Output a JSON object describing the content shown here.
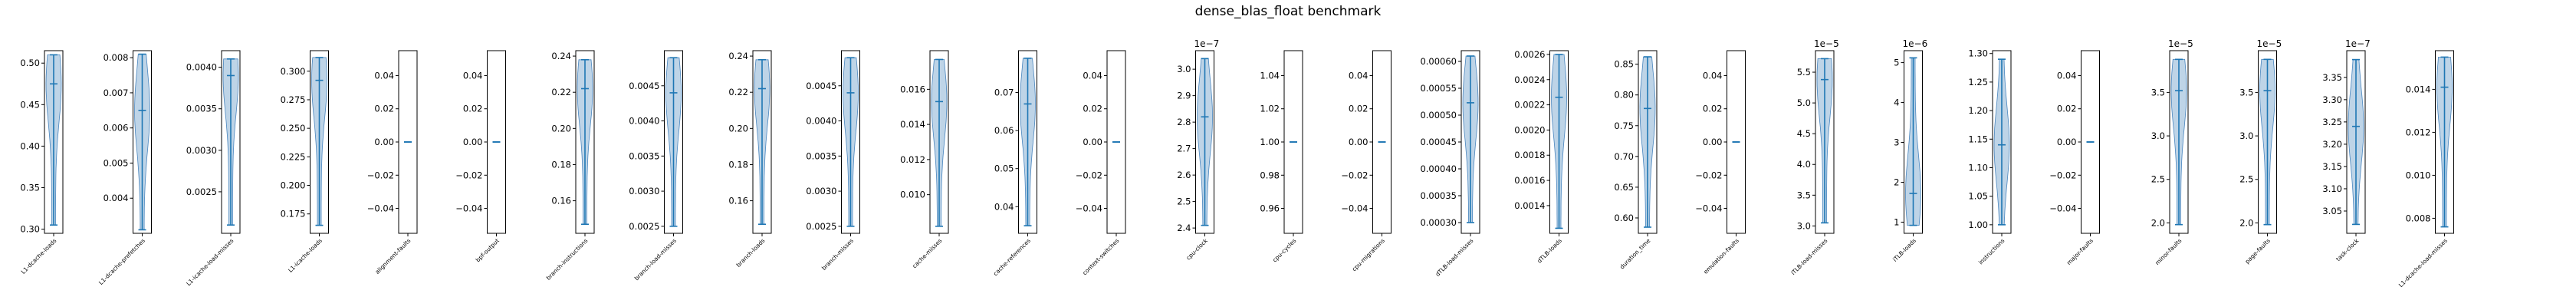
{
  "chart_data": {
    "type": "violin",
    "title": "dense_blas_float benchmark",
    "color": "#1f77b4",
    "fill": "#b3cde3",
    "panels": [
      {
        "label": "L1-dcache-loads",
        "ylim": [
          0.295,
          0.515
        ],
        "ticks": [
          "0.30",
          "0.35",
          "0.40",
          "0.45",
          "0.50"
        ],
        "tick_values": [
          0.3,
          0.35,
          0.4,
          0.45,
          0.5
        ],
        "multiplier": "",
        "min": 0.305,
        "max": 0.51,
        "median": 0.475
      },
      {
        "label": "L1-dcache-prefetches",
        "ylim": [
          0.003,
          0.0082
        ],
        "ticks": [
          "0.004",
          "0.005",
          "0.006",
          "0.007",
          "0.008"
        ],
        "tick_values": [
          0.004,
          0.005,
          0.006,
          0.007,
          0.008
        ],
        "multiplier": "",
        "min": 0.0031,
        "max": 0.0081,
        "median": 0.0065
      },
      {
        "label": "L1-icache-load-misses",
        "ylim": [
          0.002,
          0.0042
        ],
        "ticks": [
          "0.0025",
          "0.0030",
          "0.0035",
          "0.0040"
        ],
        "tick_values": [
          0.0025,
          0.003,
          0.0035,
          0.004
        ],
        "multiplier": "",
        "min": 0.0021,
        "max": 0.0041,
        "median": 0.0039
      },
      {
        "label": "L1-icache-loads",
        "ylim": [
          0.158,
          0.318
        ],
        "ticks": [
          "0.175",
          "0.200",
          "0.225",
          "0.250",
          "0.275",
          "0.300"
        ],
        "tick_values": [
          0.175,
          0.2,
          0.225,
          0.25,
          0.275,
          0.3
        ],
        "multiplier": "",
        "min": 0.165,
        "max": 0.312,
        "median": 0.292
      },
      {
        "label": "alignment-faults",
        "ylim": [
          -0.055,
          0.055
        ],
        "ticks": [
          "−0.04",
          "−0.02",
          "0.00",
          "0.02",
          "0.04"
        ],
        "tick_values": [
          -0.04,
          -0.02,
          0.0,
          0.02,
          0.04
        ],
        "multiplier": "",
        "min": 0.0,
        "max": 0.0,
        "median": 0.0
      },
      {
        "label": "bpf-output",
        "ylim": [
          -0.055,
          0.055
        ],
        "ticks": [
          "−0.04",
          "−0.02",
          "0.00",
          "0.02",
          "0.04"
        ],
        "tick_values": [
          -0.04,
          -0.02,
          0.0,
          0.02,
          0.04
        ],
        "multiplier": "",
        "min": 0.0,
        "max": 0.0,
        "median": 0.0
      },
      {
        "label": "branch-instructions",
        "ylim": [
          0.142,
          0.243
        ],
        "ticks": [
          "0.16",
          "0.18",
          "0.20",
          "0.22",
          "0.24"
        ],
        "tick_values": [
          0.16,
          0.18,
          0.2,
          0.22,
          0.24
        ],
        "multiplier": "",
        "min": 0.147,
        "max": 0.238,
        "median": 0.222
      },
      {
        "label": "branch-load-misses",
        "ylim": [
          0.0024,
          0.005
        ],
        "ticks": [
          "0.0025",
          "0.0030",
          "0.0035",
          "0.0040",
          "0.0045"
        ],
        "tick_values": [
          0.0025,
          0.003,
          0.0035,
          0.004,
          0.0045
        ],
        "multiplier": "",
        "min": 0.0025,
        "max": 0.0049,
        "median": 0.0044
      },
      {
        "label": "branch-loads",
        "ylim": [
          0.142,
          0.243
        ],
        "ticks": [
          "0.16",
          "0.18",
          "0.20",
          "0.22",
          "0.24"
        ],
        "tick_values": [
          0.16,
          0.18,
          0.2,
          0.22,
          0.24
        ],
        "multiplier": "",
        "min": 0.147,
        "max": 0.238,
        "median": 0.222
      },
      {
        "label": "branch-misses",
        "ylim": [
          0.0024,
          0.005
        ],
        "ticks": [
          "0.0025",
          "0.0030",
          "0.0035",
          "0.0040",
          "0.0045"
        ],
        "tick_values": [
          0.0025,
          0.003,
          0.0035,
          0.004,
          0.0045
        ],
        "multiplier": "",
        "min": 0.0025,
        "max": 0.0049,
        "median": 0.0044
      },
      {
        "label": "cache-misses",
        "ylim": [
          0.0078,
          0.0182
        ],
        "ticks": [
          "0.010",
          "0.012",
          "0.014",
          "0.016"
        ],
        "tick_values": [
          0.01,
          0.012,
          0.014,
          0.016
        ],
        "multiplier": "",
        "min": 0.0082,
        "max": 0.0177,
        "median": 0.0153
      },
      {
        "label": "cache-references",
        "ylim": [
          0.033,
          0.081
        ],
        "ticks": [
          "0.04",
          "0.05",
          "0.06",
          "0.07"
        ],
        "tick_values": [
          0.04,
          0.05,
          0.06,
          0.07
        ],
        "multiplier": "",
        "min": 0.035,
        "max": 0.079,
        "median": 0.067
      },
      {
        "label": "context-switches",
        "ylim": [
          -0.055,
          0.055
        ],
        "ticks": [
          "−0.04",
          "−0.02",
          "0.00",
          "0.02",
          "0.04"
        ],
        "tick_values": [
          -0.04,
          -0.02,
          0.0,
          0.02,
          0.04
        ],
        "multiplier": "",
        "min": 0.0,
        "max": 0.0,
        "median": 0.0
      },
      {
        "label": "cpu-clock",
        "ylim": [
          2.38,
          3.07
        ],
        "ticks": [
          "2.4",
          "2.5",
          "2.6",
          "2.7",
          "2.8",
          "2.9",
          "3.0"
        ],
        "tick_values": [
          2.4,
          2.5,
          2.6,
          2.7,
          2.8,
          2.9,
          3.0
        ],
        "multiplier": "1e−7",
        "min": 2.41,
        "max": 3.04,
        "median": 2.82
      },
      {
        "label": "cpu-cycles",
        "ylim": [
          0.945,
          1.055
        ],
        "ticks": [
          "0.96",
          "0.98",
          "1.00",
          "1.02",
          "1.04"
        ],
        "tick_values": [
          0.96,
          0.98,
          1.0,
          1.02,
          1.04
        ],
        "multiplier": "",
        "min": 1.0,
        "max": 1.0,
        "median": 1.0
      },
      {
        "label": "cpu-migrations",
        "ylim": [
          -0.055,
          0.055
        ],
        "ticks": [
          "−0.04",
          "−0.02",
          "0.00",
          "0.02",
          "0.04"
        ],
        "tick_values": [
          -0.04,
          -0.02,
          0.0,
          0.02,
          0.04
        ],
        "multiplier": "",
        "min": 0.0,
        "max": 0.0,
        "median": 0.0
      },
      {
        "label": "dTLB-load-misses",
        "ylim": [
          0.00028,
          0.00062
        ],
        "ticks": [
          "0.00030",
          "0.00035",
          "0.00040",
          "0.00045",
          "0.00050",
          "0.00055",
          "0.00060"
        ],
        "tick_values": [
          0.0003,
          0.00035,
          0.0004,
          0.00045,
          0.0005,
          0.00055,
          0.0006
        ],
        "multiplier": "",
        "min": 0.0003,
        "max": 0.00061,
        "median": 0.000523
      },
      {
        "label": "dTLB-loads",
        "ylim": [
          0.00118,
          0.00263
        ],
        "ticks": [
          "0.0014",
          "0.0016",
          "0.0018",
          "0.0020",
          "0.0022",
          "0.0024",
          "0.0026"
        ],
        "tick_values": [
          0.0014,
          0.0016,
          0.0018,
          0.002,
          0.0022,
          0.0024,
          0.0026
        ],
        "multiplier": "",
        "min": 0.00122,
        "max": 0.0026,
        "median": 0.00226
      },
      {
        "label": "duration_time",
        "ylim": [
          0.575,
          0.872
        ],
        "ticks": [
          "0.60",
          "0.65",
          "0.70",
          "0.75",
          "0.80",
          "0.85"
        ],
        "tick_values": [
          0.6,
          0.65,
          0.7,
          0.75,
          0.8,
          0.85
        ],
        "multiplier": "",
        "min": 0.585,
        "max": 0.862,
        "median": 0.778
      },
      {
        "label": "emulation-faults",
        "ylim": [
          -0.055,
          0.055
        ],
        "ticks": [
          "−0.04",
          "−0.02",
          "0.00",
          "0.02",
          "0.04"
        ],
        "tick_values": [
          -0.04,
          -0.02,
          0.0,
          0.02,
          0.04
        ],
        "multiplier": "",
        "min": 0.0,
        "max": 0.0,
        "median": 0.0
      },
      {
        "label": "iTLB-load-misses",
        "ylim": [
          2.88,
          5.85
        ],
        "ticks": [
          "3.0",
          "3.5",
          "4.0",
          "4.5",
          "5.0",
          "5.5"
        ],
        "tick_values": [
          3.0,
          3.5,
          4.0,
          4.5,
          5.0,
          5.5
        ],
        "multiplier": "1e−5",
        "min": 3.05,
        "max": 5.72,
        "median": 5.38
      },
      {
        "label": "iTLB-loads",
        "ylim": [
          0.72,
          5.3
        ],
        "ticks": [
          "1",
          "2",
          "3",
          "4",
          "5"
        ],
        "tick_values": [
          1,
          2,
          3,
          4,
          5
        ],
        "multiplier": "1e−6",
        "min": 0.92,
        "max": 5.12,
        "median": 1.72
      },
      {
        "label": "instructions",
        "ylim": [
          0.985,
          1.305
        ],
        "ticks": [
          "1.00",
          "1.05",
          "1.10",
          "1.15",
          "1.20",
          "1.25",
          "1.30"
        ],
        "tick_values": [
          1.0,
          1.05,
          1.1,
          1.15,
          1.2,
          1.25,
          1.3
        ],
        "multiplier": "",
        "min": 1.0,
        "max": 1.29,
        "median": 1.14
      },
      {
        "label": "major-faults",
        "ylim": [
          -0.055,
          0.055
        ],
        "ticks": [
          "−0.04",
          "−0.02",
          "0.00",
          "0.02",
          "0.04"
        ],
        "tick_values": [
          -0.04,
          -0.02,
          0.0,
          0.02,
          0.04
        ],
        "multiplier": "",
        "min": 0.0,
        "max": 0.0,
        "median": 0.0
      },
      {
        "label": "minor-faults",
        "ylim": [
          1.88,
          3.98
        ],
        "ticks": [
          "2.0",
          "2.5",
          "3.0",
          "3.5"
        ],
        "tick_values": [
          2.0,
          2.5,
          3.0,
          3.5
        ],
        "multiplier": "1e−5",
        "min": 1.98,
        "max": 3.88,
        "median": 3.52
      },
      {
        "label": "page-faults",
        "ylim": [
          1.88,
          3.98
        ],
        "ticks": [
          "2.0",
          "2.5",
          "3.0",
          "3.5"
        ],
        "tick_values": [
          2.0,
          2.5,
          3.0,
          3.5
        ],
        "multiplier": "1e−5",
        "min": 1.98,
        "max": 3.88,
        "median": 3.52
      },
      {
        "label": "task-clock",
        "ylim": [
          3.0,
          3.41
        ],
        "ticks": [
          "3.05",
          "3.10",
          "3.15",
          "3.20",
          "3.25",
          "3.30",
          "3.35"
        ],
        "tick_values": [
          3.05,
          3.1,
          3.15,
          3.2,
          3.25,
          3.3,
          3.35
        ],
        "multiplier": "1e−7",
        "min": 3.02,
        "max": 3.39,
        "median": 3.24
      },
      {
        "label": "L1-dcache-load-misses",
        "ylim": [
          0.0073,
          0.0158
        ],
        "ticks": [
          "0.008",
          "0.010",
          "0.012",
          "0.014"
        ],
        "tick_values": [
          0.008,
          0.01,
          0.012,
          0.014
        ],
        "multiplier": "",
        "min": 0.0076,
        "max": 0.0155,
        "median": 0.0141
      }
    ]
  }
}
